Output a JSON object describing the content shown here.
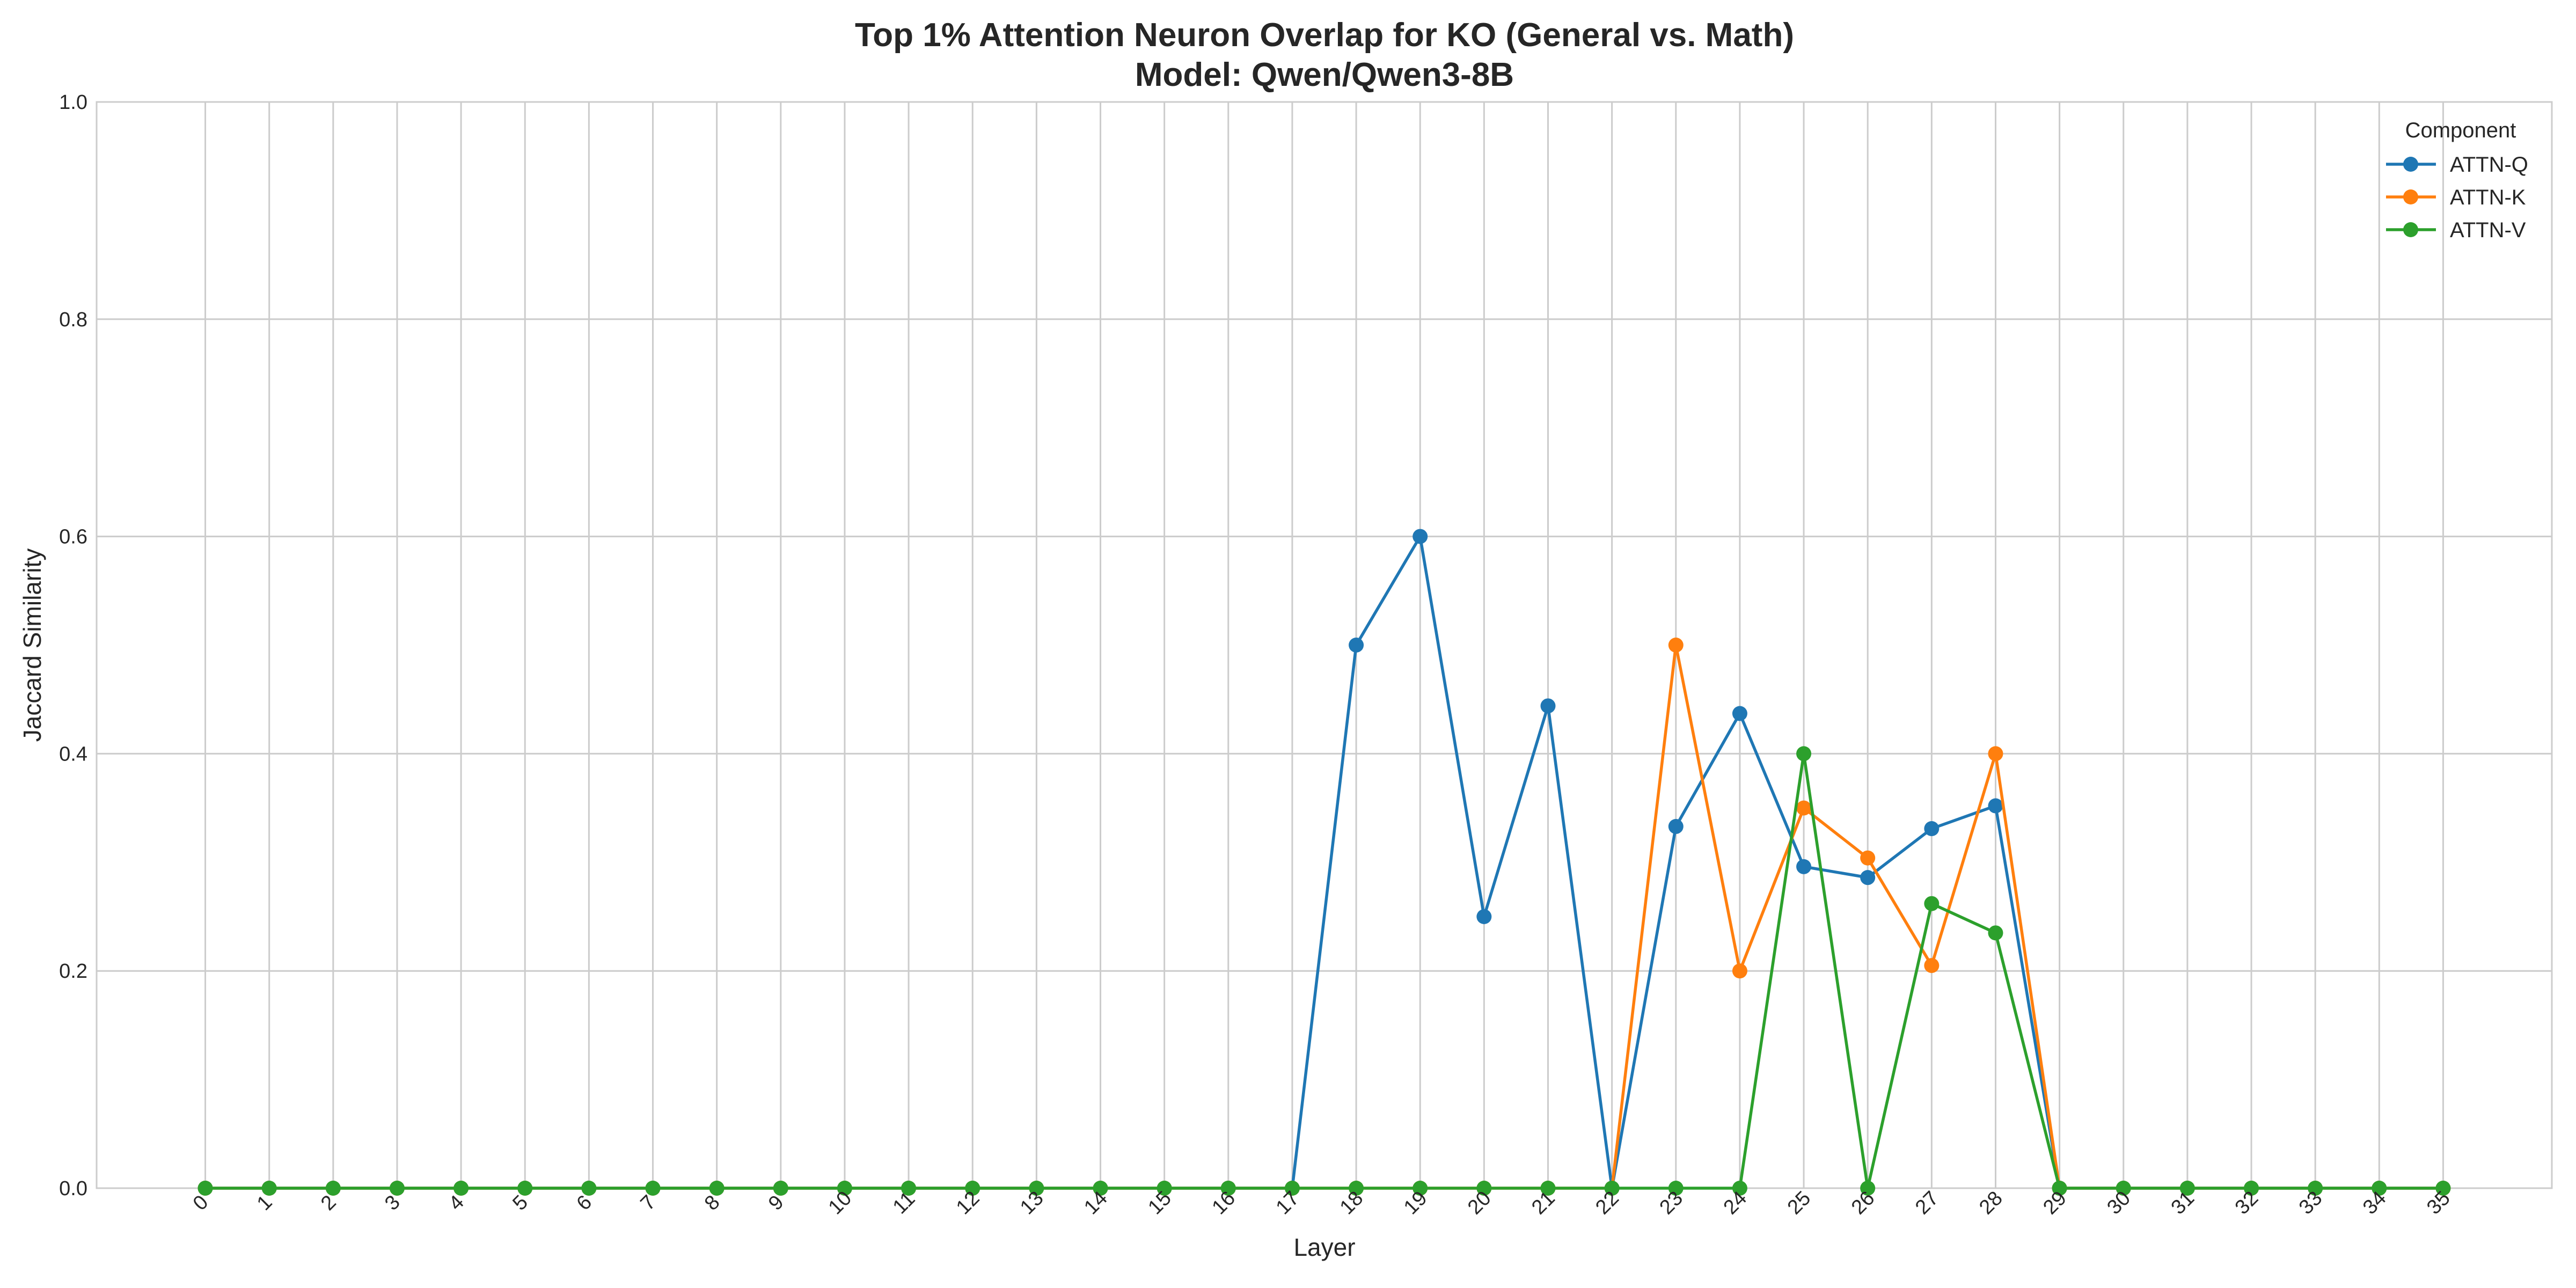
{
  "chart_data": {
    "type": "line",
    "title_line1": "Top 1% Attention Neuron Overlap for KO (General vs. Math)",
    "title_line2": "Model: Qwen/Qwen3-8B",
    "xlabel": "Layer",
    "ylabel": "Jaccard Similarity",
    "ylim": [
      0.0,
      1.0
    ],
    "yticks": [
      "0.0",
      "0.2",
      "0.4",
      "0.6",
      "0.8",
      "1.0"
    ],
    "x": [
      0,
      1,
      2,
      3,
      4,
      5,
      6,
      7,
      8,
      9,
      10,
      11,
      12,
      13,
      14,
      15,
      16,
      17,
      18,
      19,
      20,
      21,
      22,
      23,
      24,
      25,
      26,
      27,
      28,
      29,
      30,
      31,
      32,
      33,
      34,
      35
    ],
    "grid": true,
    "legend": {
      "title": "Component",
      "placement": "top-right"
    },
    "series": [
      {
        "name": "ATTN-Q",
        "color": "#1f77b4",
        "values": [
          0,
          0,
          0,
          0,
          0,
          0,
          0,
          0,
          0,
          0,
          0,
          0,
          0,
          0,
          0,
          0,
          0,
          0,
          0.5,
          0.6,
          0.25,
          0.444,
          0,
          0.333,
          0.437,
          0.296,
          0.286,
          0.331,
          0.352,
          0,
          0,
          0,
          0,
          0,
          0,
          0
        ]
      },
      {
        "name": "ATTN-K",
        "color": "#ff7f0e",
        "values": [
          0,
          0,
          0,
          0,
          0,
          0,
          0,
          0,
          0,
          0,
          0,
          0,
          0,
          0,
          0,
          0,
          0,
          0,
          0,
          0,
          0,
          0,
          0,
          0.5,
          0.2,
          0.35,
          0.304,
          0.205,
          0.4,
          0,
          0,
          0,
          0,
          0,
          0,
          0
        ]
      },
      {
        "name": "ATTN-V",
        "color": "#2ca02c",
        "values": [
          0,
          0,
          0,
          0,
          0,
          0,
          0,
          0,
          0,
          0,
          0,
          0,
          0,
          0,
          0,
          0,
          0,
          0,
          0,
          0,
          0,
          0,
          0,
          0,
          0,
          0.4,
          0,
          0.262,
          0.235,
          0,
          0,
          0,
          0,
          0,
          0,
          0
        ]
      }
    ]
  }
}
